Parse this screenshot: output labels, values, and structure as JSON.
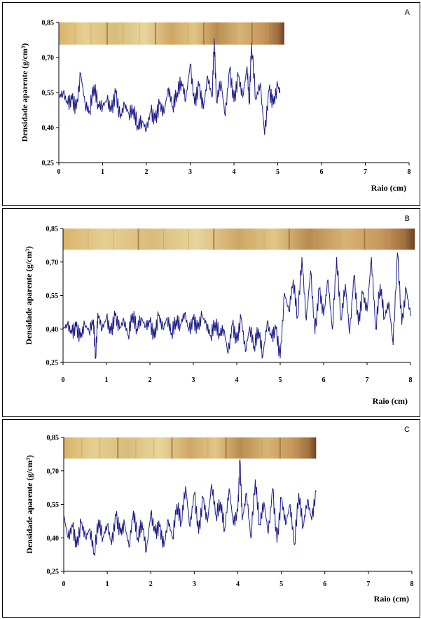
{
  "colors": {
    "line": "#1a1a8c",
    "axis": "#000000",
    "wood_light": "#e2c785",
    "wood_dark": "#7a4a1e"
  },
  "chart_data": [
    {
      "type": "line",
      "panel_label": "A",
      "xlabel": "Raio (cm)",
      "ylabel": "Densidade aparente (g/cm³)",
      "xticks": [
        "0",
        "1",
        "2",
        "3",
        "4",
        "5",
        "6",
        "7",
        "8"
      ],
      "yticks": [
        "0,25",
        "0,40",
        "0,55",
        "0,70",
        "0,85"
      ],
      "xlim": [
        0,
        8
      ],
      "ylim": [
        0.25,
        0.85
      ],
      "series": [
        {
          "x": [
            0,
            0.1,
            0.2,
            0.3,
            0.4,
            0.5,
            0.6,
            0.7,
            0.8,
            0.9,
            1.0,
            1.1,
            1.2,
            1.3,
            1.4,
            1.5,
            1.6,
            1.7,
            1.8,
            1.9,
            2.0,
            2.1,
            2.2,
            2.3,
            2.4,
            2.5,
            2.6,
            2.7,
            2.8,
            2.9,
            3.0,
            3.1,
            3.2,
            3.3,
            3.4,
            3.5,
            3.55,
            3.6,
            3.7,
            3.8,
            3.9,
            4.0,
            4.1,
            4.2,
            4.3,
            4.35,
            4.4,
            4.5,
            4.6,
            4.7,
            4.8,
            4.9,
            5.0,
            5.05
          ],
          "y": [
            0.53,
            0.55,
            0.5,
            0.52,
            0.48,
            0.63,
            0.5,
            0.47,
            0.58,
            0.5,
            0.49,
            0.52,
            0.47,
            0.55,
            0.44,
            0.5,
            0.46,
            0.48,
            0.41,
            0.43,
            0.39,
            0.47,
            0.43,
            0.5,
            0.46,
            0.57,
            0.49,
            0.55,
            0.6,
            0.52,
            0.67,
            0.5,
            0.58,
            0.48,
            0.62,
            0.53,
            0.78,
            0.51,
            0.6,
            0.45,
            0.65,
            0.51,
            0.62,
            0.53,
            0.66,
            0.5,
            0.76,
            0.52,
            0.59,
            0.37,
            0.56,
            0.5,
            0.58,
            0.55
          ]
        }
      ],
      "wood_strip_extent_cm": 5.15
    },
    {
      "type": "line",
      "panel_label": "B",
      "xlabel": "Raio (cm)",
      "ylabel": "Densidade aparente (g/cm³)",
      "xticks": [
        "0",
        "1",
        "2",
        "3",
        "4",
        "5",
        "6",
        "7",
        "8"
      ],
      "yticks": [
        "0,25",
        "0,40",
        "0,55",
        "0,70",
        "0,85"
      ],
      "xlim": [
        0,
        8
      ],
      "ylim": [
        0.25,
        0.85
      ],
      "series": [
        {
          "x": [
            0,
            0.1,
            0.2,
            0.3,
            0.4,
            0.5,
            0.6,
            0.7,
            0.75,
            0.8,
            0.9,
            1.0,
            1.1,
            1.2,
            1.3,
            1.4,
            1.5,
            1.6,
            1.7,
            1.8,
            1.9,
            2.0,
            2.1,
            2.2,
            2.3,
            2.4,
            2.5,
            2.6,
            2.7,
            2.8,
            2.9,
            3.0,
            3.1,
            3.2,
            3.3,
            3.4,
            3.5,
            3.6,
            3.7,
            3.8,
            3.9,
            4.0,
            4.1,
            4.2,
            4.3,
            4.4,
            4.5,
            4.6,
            4.7,
            4.8,
            4.9,
            5.0,
            5.1,
            5.2,
            5.3,
            5.4,
            5.5,
            5.6,
            5.7,
            5.8,
            5.9,
            6.0,
            6.1,
            6.2,
            6.3,
            6.4,
            6.5,
            6.6,
            6.7,
            6.8,
            6.9,
            7.0,
            7.1,
            7.2,
            7.3,
            7.4,
            7.5,
            7.6,
            7.7,
            7.8,
            7.9,
            8.0
          ],
          "y": [
            0.4,
            0.42,
            0.38,
            0.41,
            0.36,
            0.42,
            0.39,
            0.44,
            0.27,
            0.47,
            0.4,
            0.45,
            0.38,
            0.46,
            0.4,
            0.44,
            0.37,
            0.47,
            0.4,
            0.45,
            0.41,
            0.43,
            0.36,
            0.46,
            0.4,
            0.45,
            0.38,
            0.44,
            0.42,
            0.47,
            0.39,
            0.44,
            0.4,
            0.46,
            0.42,
            0.37,
            0.43,
            0.38,
            0.4,
            0.29,
            0.42,
            0.34,
            0.45,
            0.3,
            0.41,
            0.32,
            0.4,
            0.28,
            0.43,
            0.36,
            0.4,
            0.27,
            0.56,
            0.48,
            0.62,
            0.45,
            0.72,
            0.44,
            0.66,
            0.38,
            0.58,
            0.46,
            0.62,
            0.4,
            0.72,
            0.44,
            0.6,
            0.38,
            0.64,
            0.42,
            0.56,
            0.48,
            0.72,
            0.4,
            0.6,
            0.45,
            0.52,
            0.33,
            0.74,
            0.42,
            0.58,
            0.46
          ]
        }
      ],
      "wood_strip_extent_cm": 8.1
    },
    {
      "type": "line",
      "panel_label": "C",
      "xlabel": "Raio (cm)",
      "ylabel": "Densidade aparente (g/cm³)",
      "xticks": [
        "0",
        "1",
        "2",
        "3",
        "4",
        "5",
        "6",
        "7",
        "8"
      ],
      "yticks": [
        "0,25",
        "0,40",
        "0,55",
        "0,70",
        "0,85"
      ],
      "xlim": [
        0,
        8
      ],
      "ylim": [
        0.25,
        0.85
      ],
      "series": [
        {
          "x": [
            0,
            0.1,
            0.2,
            0.3,
            0.4,
            0.5,
            0.6,
            0.7,
            0.8,
            0.9,
            1.0,
            1.1,
            1.2,
            1.3,
            1.4,
            1.5,
            1.6,
            1.7,
            1.8,
            1.9,
            2.0,
            2.1,
            2.2,
            2.3,
            2.4,
            2.5,
            2.6,
            2.7,
            2.8,
            2.9,
            3.0,
            3.1,
            3.2,
            3.3,
            3.4,
            3.5,
            3.6,
            3.7,
            3.8,
            3.9,
            4.0,
            4.05,
            4.1,
            4.2,
            4.3,
            4.4,
            4.5,
            4.6,
            4.7,
            4.8,
            4.9,
            5.0,
            5.1,
            5.2,
            5.3,
            5.4,
            5.5,
            5.6,
            5.7,
            5.8
          ],
          "y": [
            0.5,
            0.4,
            0.45,
            0.36,
            0.47,
            0.4,
            0.44,
            0.33,
            0.48,
            0.4,
            0.46,
            0.37,
            0.5,
            0.42,
            0.46,
            0.36,
            0.52,
            0.4,
            0.47,
            0.34,
            0.51,
            0.42,
            0.45,
            0.36,
            0.48,
            0.4,
            0.55,
            0.47,
            0.63,
            0.45,
            0.6,
            0.42,
            0.58,
            0.47,
            0.64,
            0.5,
            0.56,
            0.44,
            0.62,
            0.46,
            0.52,
            0.75,
            0.48,
            0.6,
            0.4,
            0.66,
            0.46,
            0.56,
            0.42,
            0.62,
            0.38,
            0.58,
            0.46,
            0.55,
            0.37,
            0.6,
            0.45,
            0.57,
            0.48,
            0.61
          ]
        }
      ],
      "wood_strip_extent_cm": 5.8
    }
  ]
}
